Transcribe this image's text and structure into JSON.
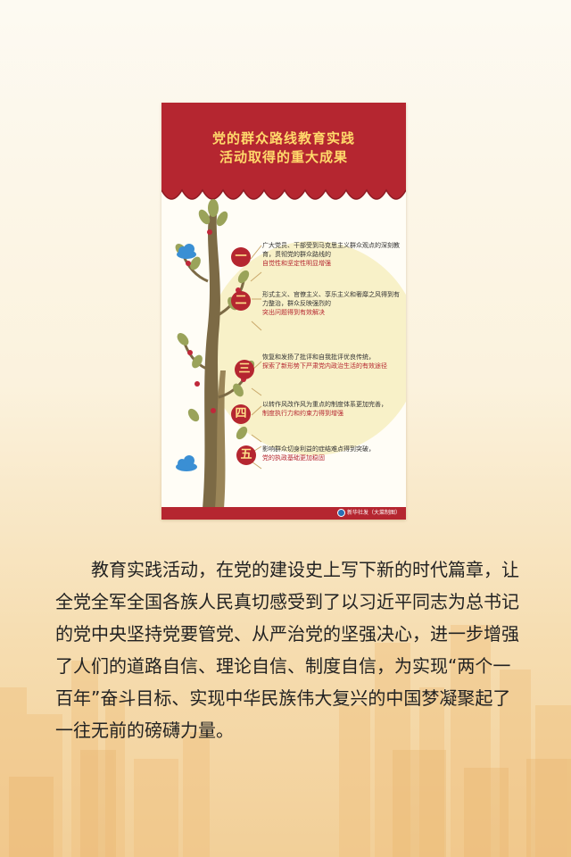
{
  "poster": {
    "title_line1": "党的群众路线教育实践",
    "title_line2": "活动取得的重大成果",
    "items": [
      {
        "number": "一",
        "text": "广大党员、干部受到马克思主义群众观点的深刻教育，贯彻党的群众路线的",
        "highlight": "自觉性和坚定性明显增强"
      },
      {
        "number": "二",
        "text": "形式主义、官僚主义、享乐主义和奢靡之风得到有力整治，群众反映强烈的",
        "highlight": "突出问题得到有效解决"
      },
      {
        "number": "三",
        "text": "恢复和发扬了批评和自我批评优良传统，",
        "highlight": "探索了新形势下严肃党内政治生活的有效途径"
      },
      {
        "number": "四",
        "text": "以转作风改作风为重点的制度体系更加完善，",
        "highlight": "制度执行力和约束力得到增强"
      },
      {
        "number": "五",
        "text": "影响群众切身利益的症结难点得到突破，",
        "highlight": "党的执政基础更加稳固"
      }
    ],
    "credit": "新华社发（大菜制图）"
  },
  "article": {
    "paragraph": "教育实践活动，在党的建设史上写下新的时代篇章，让全党全军全国各族人民真切感受到了以习近平同志为总书记的党中央坚持党要管党、从严治党的坚强决心，进一步增强了人们的道路自信、理论自信、制度自信，为实现“两个一百年”奋斗目标、实现中华民族伟大复兴的中国梦凝聚起了一往无前的磅礴力量。"
  },
  "colors": {
    "poster_red": "#b52630",
    "title_gold": "#ffd96b",
    "tree_trunk": "#7c6a45",
    "tree_leaves": "#9aa35a",
    "circle_backdrop": "#f8f1c8",
    "cloud_blue": "#3a8fd4",
    "page_background_top": "#fdfaf2",
    "page_background_bottom": "#f2cf98"
  },
  "icons": [
    "cloud-icon",
    "tree-illustration",
    "stage-curtain",
    "xinhua-logo-icon"
  ]
}
